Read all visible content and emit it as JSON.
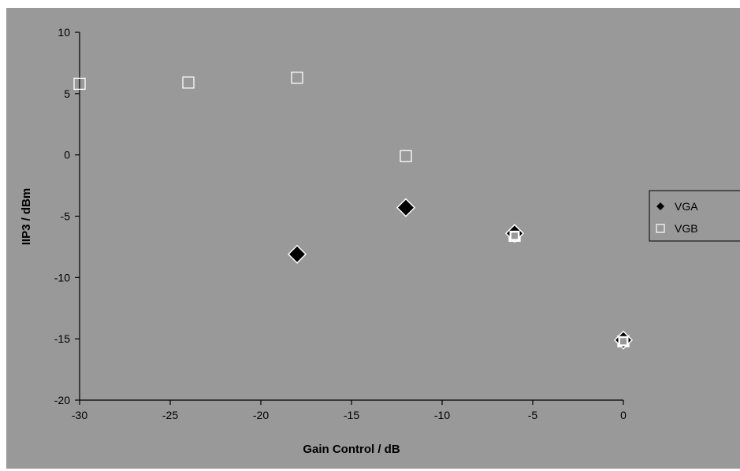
{
  "chart_data": {
    "type": "scatter",
    "xlabel": "Gain Control / dB",
    "ylabel": "IIP3 / dBm",
    "xlim": [
      -30,
      0
    ],
    "ylim": [
      -20,
      10
    ],
    "xticks": [
      -30,
      -25,
      -20,
      -15,
      -10,
      -5,
      0
    ],
    "yticks": [
      10,
      5,
      0,
      -5,
      -10,
      -15,
      -20
    ],
    "grid": false,
    "legend": "right",
    "background_color": "#999999",
    "series": [
      {
        "name": "VGA",
        "marker": "filled-diamond",
        "color": "#000000",
        "points": [
          {
            "x": -18,
            "y": -8.1
          },
          {
            "x": -12,
            "y": -4.3
          },
          {
            "x": -6,
            "y": -6.4
          },
          {
            "x": 0,
            "y": -15.1
          }
        ]
      },
      {
        "name": "VGB",
        "marker": "open-square",
        "color": "#ffffff",
        "points": [
          {
            "x": -30,
            "y": 5.8
          },
          {
            "x": -24,
            "y": 5.9
          },
          {
            "x": -18,
            "y": 6.3
          },
          {
            "x": -12,
            "y": -0.1
          },
          {
            "x": -6,
            "y": -6.6
          },
          {
            "x": 0,
            "y": -15.2
          }
        ]
      }
    ]
  }
}
